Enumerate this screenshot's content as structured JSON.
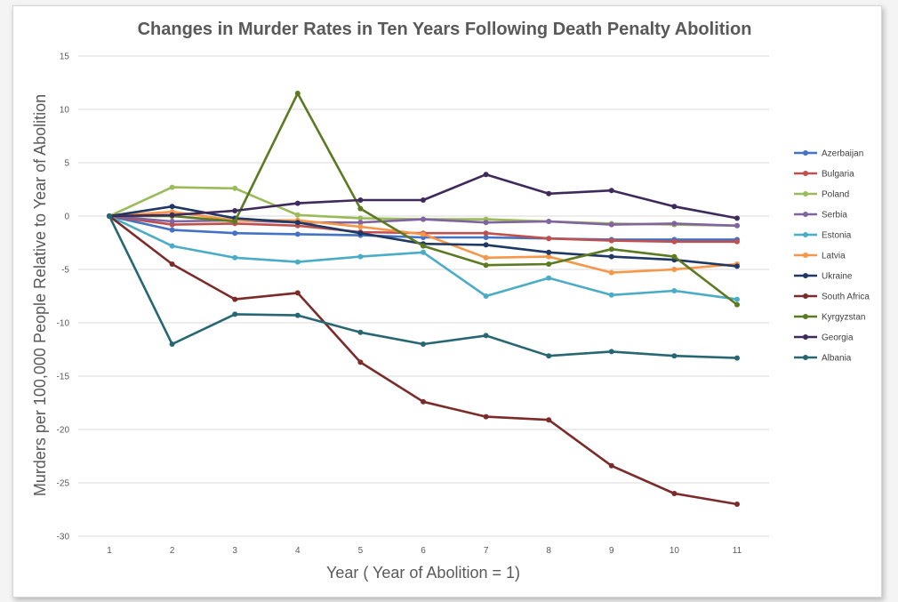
{
  "chart_data": {
    "type": "line",
    "title": "Changes in Murder Rates in Ten Years Following Death Penalty Abolition",
    "xlabel": "Year ( Year of Abolition = 1)",
    "ylabel": "Murders per 100,000 People Relative to Year of Abolition",
    "x": [
      1,
      2,
      3,
      4,
      5,
      6,
      7,
      8,
      9,
      10,
      11
    ],
    "ylim": [
      -30,
      15
    ],
    "yticks": [
      15,
      10,
      5,
      0,
      -5,
      -10,
      -15,
      -20,
      -25,
      -30
    ],
    "grid": true,
    "legend_position": "right",
    "series": [
      {
        "name": "Azerbaijan",
        "color": "#4472C4",
        "values": [
          0,
          -1.3,
          -1.6,
          -1.7,
          -1.8,
          -2.0,
          -2.0,
          -2.1,
          -2.2,
          -2.2,
          -2.2
        ]
      },
      {
        "name": "Bulgaria",
        "color": "#C0504D",
        "values": [
          0,
          -0.8,
          -0.7,
          -0.9,
          -1.5,
          -1.6,
          -1.6,
          -2.1,
          -2.3,
          -2.4,
          -2.4
        ]
      },
      {
        "name": "Poland",
        "color": "#9BBB59",
        "values": [
          0,
          2.7,
          2.6,
          0.1,
          -0.2,
          -0.3,
          -0.3,
          -0.5,
          -0.7,
          -0.8,
          -0.9
        ]
      },
      {
        "name": "Serbia",
        "color": "#8064A2",
        "values": [
          0,
          -0.5,
          -0.4,
          -0.6,
          -0.6,
          -0.3,
          -0.6,
          -0.5,
          -0.8,
          -0.7,
          -0.9
        ]
      },
      {
        "name": "Estonia",
        "color": "#4BACC6",
        "values": [
          0,
          -2.8,
          -3.9,
          -4.3,
          -3.8,
          -3.4,
          -7.5,
          -5.8,
          -7.4,
          -7.0,
          -7.8
        ]
      },
      {
        "name": "Latvia",
        "color": "#F79646",
        "values": [
          0,
          0.4,
          -0.4,
          -0.4,
          -1.0,
          -1.7,
          -3.9,
          -3.8,
          -5.3,
          -5.0,
          -4.5
        ]
      },
      {
        "name": "Ukraine",
        "color": "#1F3864",
        "values": [
          0,
          0.9,
          -0.2,
          -0.6,
          -1.6,
          -2.6,
          -2.7,
          -3.4,
          -3.8,
          -4.1,
          -4.7
        ]
      },
      {
        "name": "South Africa",
        "color": "#7B2C2A",
        "values": [
          0,
          -4.5,
          -7.8,
          -7.2,
          -13.7,
          -17.4,
          -18.8,
          -19.1,
          -23.4,
          -26.0,
          -27.0
        ]
      },
      {
        "name": "Kyrgyzstan",
        "color": "#5B7A21",
        "values": [
          0,
          0.0,
          -0.5,
          11.5,
          0.7,
          -2.8,
          -4.6,
          -4.5,
          -3.1,
          -3.8,
          -8.3
        ]
      },
      {
        "name": "Georgia",
        "color": "#3F2A5C",
        "values": [
          0,
          0.1,
          0.5,
          1.2,
          1.5,
          1.5,
          3.9,
          2.1,
          2.4,
          0.9,
          -0.2
        ]
      },
      {
        "name": "Albania",
        "color": "#276773",
        "values": [
          0,
          -12.0,
          -9.2,
          -9.3,
          -10.9,
          -12.0,
          -11.2,
          -13.1,
          -12.7,
          -13.1,
          -13.3
        ]
      }
    ]
  }
}
